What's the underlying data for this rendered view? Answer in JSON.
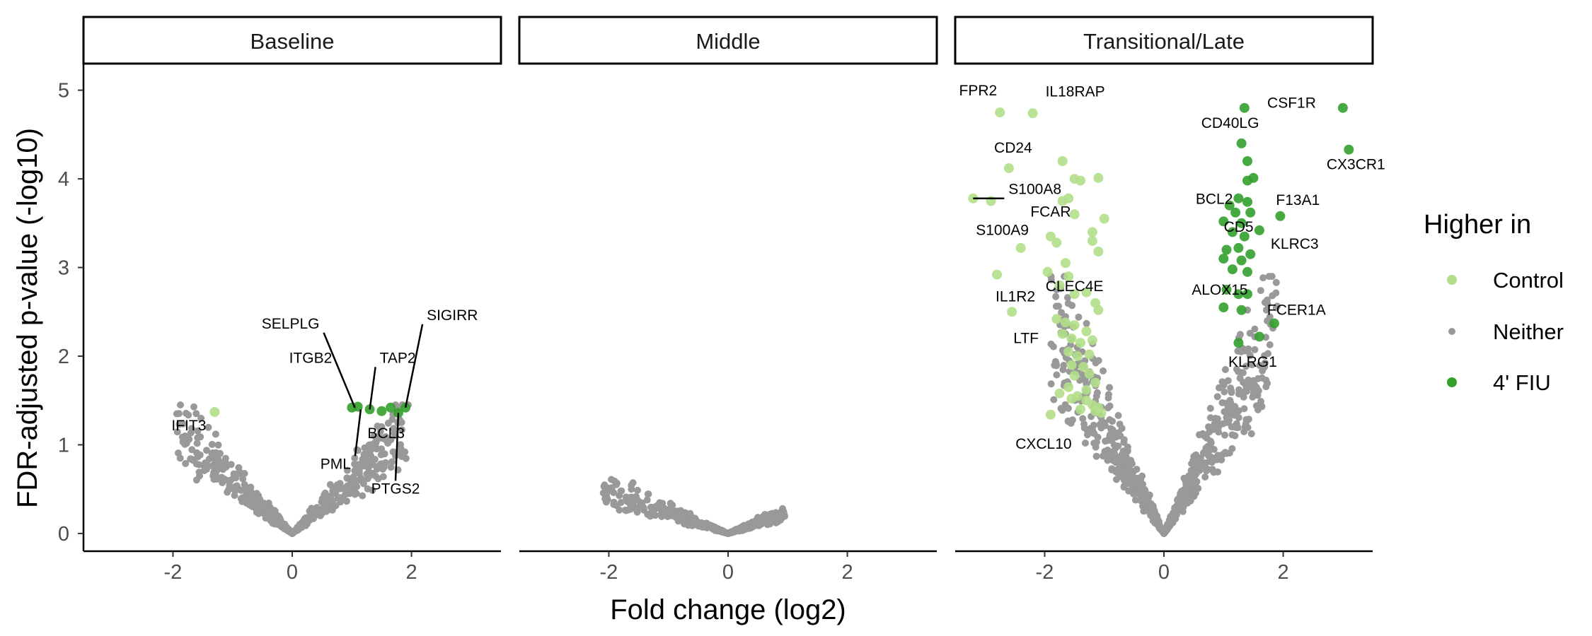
{
  "chart_data": {
    "type": "scatter",
    "xlabel": "Fold change (log2)",
    "ylabel": "FDR-adjusted p-value (-log10)",
    "xlim": [
      -3.5,
      3.5
    ],
    "ylim": [
      -0.2,
      5.3
    ],
    "x_ticks": [
      "-2",
      "0",
      "2"
    ],
    "y_ticks": [
      "0",
      "1",
      "2",
      "3",
      "4",
      "5"
    ],
    "legend": {
      "title": "Higher in",
      "position": "right",
      "entries": [
        {
          "label": "Control",
          "color": "#b2df8a"
        },
        {
          "label": "Neither",
          "color": "#999999"
        },
        {
          "label": "4' FIU",
          "color": "#33a02c"
        }
      ]
    },
    "colors": {
      "Control": "#b2df8a",
      "Neither": "#999999",
      "4' FIU": "#33a02c"
    },
    "panels": [
      {
        "title": "Baseline",
        "neither": {
          "max_abs_fc": 1.95,
          "max_y": 1.45
        },
        "points": [
          {
            "x": -1.3,
            "y": 1.37,
            "group": "Control"
          },
          {
            "x": 1.0,
            "y": 1.42,
            "group": "4' FIU"
          },
          {
            "x": 1.1,
            "y": 1.43,
            "group": "4' FIU"
          },
          {
            "x": 1.3,
            "y": 1.4,
            "group": "4' FIU"
          },
          {
            "x": 1.5,
            "y": 1.38,
            "group": "4' FIU"
          },
          {
            "x": 1.65,
            "y": 1.42,
            "group": "4' FIU"
          },
          {
            "x": 1.78,
            "y": 1.36,
            "group": "4' FIU"
          },
          {
            "x": 1.9,
            "y": 1.42,
            "group": "4' FIU"
          }
        ],
        "labels": [
          {
            "gene": "IFIT3",
            "x": -1.3,
            "y": 1.37
          },
          {
            "gene": "SELPLG",
            "x": 1.05,
            "y": 1.42
          },
          {
            "gene": "ITGB2",
            "x": 1.0,
            "y": 1.43
          },
          {
            "gene": "TAP2",
            "x": 1.3,
            "y": 1.4
          },
          {
            "gene": "BCL3",
            "x": 1.5,
            "y": 1.38
          },
          {
            "gene": "PML",
            "x": 1.15,
            "y": 1.4
          },
          {
            "gene": "SIGIRR",
            "x": 1.9,
            "y": 1.42
          },
          {
            "gene": "PTGS2",
            "x": 1.78,
            "y": 1.36
          }
        ]
      },
      {
        "title": "Middle",
        "neither": {
          "max_abs_fc": 2.1,
          "max_y": 0.62
        },
        "points": [],
        "labels": []
      },
      {
        "title": "Transitional/Late",
        "neither": {
          "max_abs_fc": 1.9,
          "max_y": 2.9
        },
        "points": [
          {
            "x": -2.75,
            "y": 4.75,
            "group": "Control"
          },
          {
            "x": -2.2,
            "y": 4.74,
            "group": "Control"
          },
          {
            "x": -2.6,
            "y": 4.12,
            "group": "Control"
          },
          {
            "x": -3.2,
            "y": 3.78,
            "group": "Control"
          },
          {
            "x": -2.9,
            "y": 3.75,
            "group": "Control"
          },
          {
            "x": -1.7,
            "y": 4.2,
            "group": "Control"
          },
          {
            "x": -1.5,
            "y": 4.0,
            "group": "Control"
          },
          {
            "x": -1.4,
            "y": 3.98,
            "group": "Control"
          },
          {
            "x": -1.1,
            "y": 4.01,
            "group": "Control"
          },
          {
            "x": -1.6,
            "y": 3.78,
            "group": "Control"
          },
          {
            "x": -1.7,
            "y": 3.75,
            "group": "Control"
          },
          {
            "x": -1.5,
            "y": 3.6,
            "group": "Control"
          },
          {
            "x": -1.0,
            "y": 3.55,
            "group": "Control"
          },
          {
            "x": -1.2,
            "y": 3.4,
            "group": "Control"
          },
          {
            "x": -2.4,
            "y": 3.22,
            "group": "Control"
          },
          {
            "x": -1.9,
            "y": 3.35,
            "group": "Control"
          },
          {
            "x": -1.8,
            "y": 3.28,
            "group": "Control"
          },
          {
            "x": -1.65,
            "y": 3.05,
            "group": "Control"
          },
          {
            "x": -1.2,
            "y": 3.3,
            "group": "Control"
          },
          {
            "x": -1.1,
            "y": 3.18,
            "group": "Control"
          },
          {
            "x": -2.8,
            "y": 2.92,
            "group": "Control"
          },
          {
            "x": -1.95,
            "y": 2.95,
            "group": "Control"
          },
          {
            "x": -1.6,
            "y": 2.9,
            "group": "Control"
          },
          {
            "x": -1.75,
            "y": 2.8,
            "group": "Control"
          },
          {
            "x": -1.5,
            "y": 2.7,
            "group": "Control"
          },
          {
            "x": -1.3,
            "y": 2.72,
            "group": "Control"
          },
          {
            "x": -1.15,
            "y": 2.6,
            "group": "Control"
          },
          {
            "x": -1.1,
            "y": 2.52,
            "group": "Control"
          },
          {
            "x": -2.55,
            "y": 2.5,
            "group": "Control"
          },
          {
            "x": -1.8,
            "y": 2.42,
            "group": "Control"
          },
          {
            "x": -1.65,
            "y": 2.38,
            "group": "Control"
          },
          {
            "x": -1.5,
            "y": 2.35,
            "group": "Control"
          },
          {
            "x": -1.7,
            "y": 2.25,
            "group": "Control"
          },
          {
            "x": -1.55,
            "y": 2.2,
            "group": "Control"
          },
          {
            "x": -1.3,
            "y": 2.28,
            "group": "Control"
          },
          {
            "x": -1.4,
            "y": 2.15,
            "group": "Control"
          },
          {
            "x": -1.2,
            "y": 2.18,
            "group": "Control"
          },
          {
            "x": -1.6,
            "y": 2.05,
            "group": "Control"
          },
          {
            "x": -1.45,
            "y": 2.0,
            "group": "Control"
          },
          {
            "x": -1.25,
            "y": 2.02,
            "group": "Control"
          },
          {
            "x": -1.55,
            "y": 1.9,
            "group": "Control"
          },
          {
            "x": -1.35,
            "y": 1.88,
            "group": "Control"
          },
          {
            "x": -1.5,
            "y": 1.78,
            "group": "Control"
          },
          {
            "x": -1.25,
            "y": 1.8,
            "group": "Control"
          },
          {
            "x": -1.6,
            "y": 1.65,
            "group": "Control"
          },
          {
            "x": -1.3,
            "y": 1.62,
            "group": "Control"
          },
          {
            "x": -1.15,
            "y": 1.7,
            "group": "Control"
          },
          {
            "x": -1.75,
            "y": 1.58,
            "group": "Control"
          },
          {
            "x": -1.45,
            "y": 1.55,
            "group": "Control"
          },
          {
            "x": -1.55,
            "y": 1.52,
            "group": "Control"
          },
          {
            "x": -1.3,
            "y": 1.5,
            "group": "Control"
          },
          {
            "x": -1.2,
            "y": 1.45,
            "group": "Control"
          },
          {
            "x": -1.1,
            "y": 1.42,
            "group": "Control"
          },
          {
            "x": -1.4,
            "y": 1.4,
            "group": "Control"
          },
          {
            "x": -1.15,
            "y": 1.38,
            "group": "Control"
          },
          {
            "x": -1.05,
            "y": 1.36,
            "group": "Control"
          },
          {
            "x": -1.9,
            "y": 1.34,
            "group": "Control"
          },
          {
            "x": 1.35,
            "y": 4.8,
            "group": "4' FIU"
          },
          {
            "x": 3.0,
            "y": 4.8,
            "group": "4' FIU"
          },
          {
            "x": 3.1,
            "y": 4.33,
            "group": "4' FIU"
          },
          {
            "x": 1.3,
            "y": 4.4,
            "group": "4' FIU"
          },
          {
            "x": 1.4,
            "y": 4.2,
            "group": "4' FIU"
          },
          {
            "x": 1.4,
            "y": 3.98,
            "group": "4' FIU"
          },
          {
            "x": 1.5,
            "y": 4.01,
            "group": "4' FIU"
          },
          {
            "x": 1.25,
            "y": 3.78,
            "group": "4' FIU"
          },
          {
            "x": 1.4,
            "y": 3.74,
            "group": "4' FIU"
          },
          {
            "x": 1.1,
            "y": 3.7,
            "group": "4' FIU"
          },
          {
            "x": 1.2,
            "y": 3.62,
            "group": "4' FIU"
          },
          {
            "x": 1.45,
            "y": 3.62,
            "group": "4' FIU"
          },
          {
            "x": 1.95,
            "y": 3.58,
            "group": "4' FIU"
          },
          {
            "x": 1.0,
            "y": 3.52,
            "group": "4' FIU"
          },
          {
            "x": 1.3,
            "y": 3.5,
            "group": "4' FIU"
          },
          {
            "x": 1.6,
            "y": 3.42,
            "group": "4' FIU"
          },
          {
            "x": 1.15,
            "y": 3.4,
            "group": "4' FIU"
          },
          {
            "x": 1.35,
            "y": 3.35,
            "group": "4' FIU"
          },
          {
            "x": 1.05,
            "y": 3.2,
            "group": "4' FIU"
          },
          {
            "x": 1.25,
            "y": 3.22,
            "group": "4' FIU"
          },
          {
            "x": 1.45,
            "y": 3.15,
            "group": "4' FIU"
          },
          {
            "x": 1.0,
            "y": 3.1,
            "group": "4' FIU"
          },
          {
            "x": 1.3,
            "y": 3.08,
            "group": "4' FIU"
          },
          {
            "x": 1.15,
            "y": 2.98,
            "group": "4' FIU"
          },
          {
            "x": 1.4,
            "y": 2.95,
            "group": "4' FIU"
          },
          {
            "x": 1.05,
            "y": 2.75,
            "group": "4' FIU"
          },
          {
            "x": 1.25,
            "y": 2.7,
            "group": "4' FIU"
          },
          {
            "x": 1.4,
            "y": 2.7,
            "group": "4' FIU"
          },
          {
            "x": 1.0,
            "y": 2.55,
            "group": "4' FIU"
          },
          {
            "x": 1.3,
            "y": 2.52,
            "group": "4' FIU"
          },
          {
            "x": 1.85,
            "y": 2.37,
            "group": "4' FIU"
          },
          {
            "x": 1.6,
            "y": 2.22,
            "group": "4' FIU"
          },
          {
            "x": 1.25,
            "y": 2.15,
            "group": "4' FIU"
          }
        ],
        "labels": [
          {
            "gene": "FPR2",
            "x": -2.75,
            "y": 4.75
          },
          {
            "gene": "IL18RAP",
            "x": -2.2,
            "y": 4.74
          },
          {
            "gene": "CD24",
            "x": -2.6,
            "y": 4.12
          },
          {
            "gene": "S100A8",
            "x": -3.2,
            "y": 3.78
          },
          {
            "gene": "S100A9",
            "x": -2.9,
            "y": 3.75
          },
          {
            "gene": "FCAR",
            "x": -1.9,
            "y": 3.35
          },
          {
            "gene": "IL1R2",
            "x": -2.8,
            "y": 2.92
          },
          {
            "gene": "CLEC4E",
            "x": -1.5,
            "y": 2.7
          },
          {
            "gene": "LTF",
            "x": -2.55,
            "y": 2.5
          },
          {
            "gene": "CXCL10",
            "x": -1.9,
            "y": 1.34
          },
          {
            "gene": "CSF1R",
            "x": 3.0,
            "y": 4.8
          },
          {
            "gene": "CD40LG",
            "x": 1.3,
            "y": 4.4
          },
          {
            "gene": "CX3CR1",
            "x": 3.1,
            "y": 4.33
          },
          {
            "gene": "BCL2",
            "x": 1.25,
            "y": 3.78
          },
          {
            "gene": "F13A1",
            "x": 1.95,
            "y": 3.58
          },
          {
            "gene": "CD5",
            "x": 1.3,
            "y": 3.5
          },
          {
            "gene": "KLRC3",
            "x": 1.6,
            "y": 3.42
          },
          {
            "gene": "ALOX15",
            "x": 1.15,
            "y": 2.98
          },
          {
            "gene": "FCER1A",
            "x": 1.85,
            "y": 2.37
          },
          {
            "gene": "KLRG1",
            "x": 1.25,
            "y": 2.15
          }
        ]
      }
    ]
  }
}
